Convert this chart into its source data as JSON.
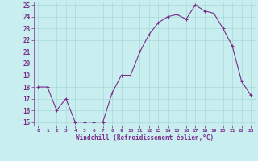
{
  "x": [
    0,
    1,
    2,
    3,
    4,
    5,
    6,
    7,
    8,
    9,
    10,
    11,
    12,
    13,
    14,
    15,
    16,
    17,
    18,
    19,
    20,
    21,
    22,
    23
  ],
  "y": [
    18,
    18,
    16,
    17,
    15,
    15,
    15,
    15,
    17.5,
    19,
    19,
    21,
    22.5,
    23.5,
    24,
    24.2,
    23.8,
    25,
    24.5,
    24.3,
    23,
    21.5,
    18.5,
    17.3
  ],
  "line_color": "#7B2D8B",
  "marker": "+",
  "marker_color": "#7B2D8B",
  "bg_color": "#C8EEF0",
  "grid_color": "#A8D8D8",
  "xlabel": "Windchill (Refroidissement éolien,°C)",
  "xlabel_color": "#7B2D8B",
  "tick_color": "#7B2D8B",
  "spine_color": "#7B2D8B",
  "ylim": [
    14.7,
    25.3
  ],
  "yticks": [
    15,
    16,
    17,
    18,
    19,
    20,
    21,
    22,
    23,
    24,
    25
  ],
  "xticks": [
    0,
    1,
    2,
    3,
    4,
    5,
    6,
    7,
    8,
    9,
    10,
    11,
    12,
    13,
    14,
    15,
    16,
    17,
    18,
    19,
    20,
    21,
    22,
    23
  ],
  "xlim": [
    -0.5,
    23.5
  ],
  "line_width": 0.8,
  "marker_size": 3.5
}
